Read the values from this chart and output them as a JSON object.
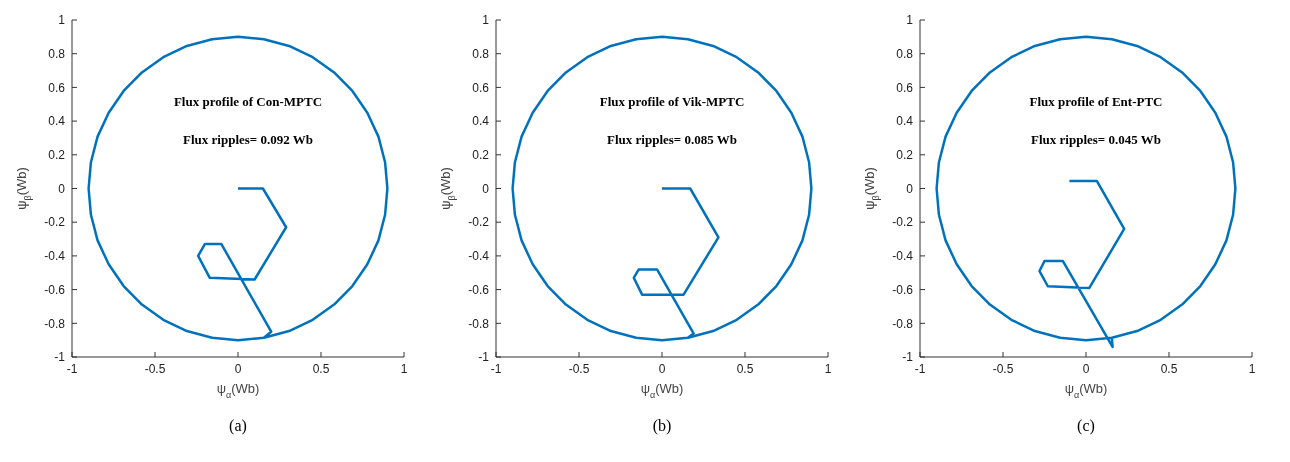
{
  "chart_data": [
    {
      "type": "line",
      "title": "Flux profile of Con-MPTC",
      "subtitle": "Flux ripples= 0.092 Wb",
      "annotations": [
        "(a)"
      ],
      "xlabel": "ψ$_{α}$(Wb)",
      "ylabel": "ψ$_{β}$(Wb)",
      "xlim": [
        -1,
        1
      ],
      "xticks": [
        -1,
        -0.5,
        0,
        0.5,
        1
      ],
      "ylim": [
        -1,
        1
      ],
      "yticks": [
        -1,
        -0.8,
        -0.6,
        -0.4,
        -0.2,
        0,
        0.2,
        0.4,
        0.6,
        0.8,
        1
      ],
      "grid": false,
      "marker": "none",
      "line_style": "solid",
      "series": [
        {
          "color": "#0072bd",
          "x": [
            0,
            0.15,
            0.29,
            0.1,
            -0.17,
            -0.24,
            -0.2,
            -0.1,
            0.2,
            0.156,
            0.308,
            0.45,
            0.579,
            0.689,
            0.779,
            0.846,
            0.886,
            0.9,
            0.886,
            0.846,
            0.779,
            0.689,
            0.579,
            0.45,
            0.308,
            0.156,
            0,
            -0.156,
            -0.308,
            -0.45,
            -0.579,
            -0.689,
            -0.779,
            -0.846,
            -0.886,
            -0.9,
            -0.886,
            -0.846,
            -0.779,
            -0.689,
            -0.579,
            -0.45,
            -0.308,
            -0.156,
            0,
            0.156
          ],
          "values": [
            0,
            0,
            -0.23,
            -0.54,
            -0.53,
            -0.4,
            -0.33,
            -0.33,
            -0.85,
            -0.886,
            -0.846,
            -0.779,
            -0.689,
            -0.579,
            -0.45,
            -0.308,
            -0.156,
            0,
            0.156,
            0.308,
            0.45,
            0.579,
            0.689,
            0.779,
            0.846,
            0.886,
            0.9,
            0.886,
            0.846,
            0.779,
            0.689,
            0.579,
            0.45,
            0.308,
            0.156,
            0,
            -0.156,
            -0.308,
            -0.45,
            -0.579,
            -0.689,
            -0.779,
            -0.846,
            -0.886,
            -0.9,
            -0.886
          ]
        }
      ]
    },
    {
      "type": "line",
      "title": "Flux profile of Vik-MPTC",
      "subtitle": "Flux ripples= 0.085 Wb",
      "annotations": [
        "(b)"
      ],
      "xlabel": "ψ$_{α}$(Wb)",
      "ylabel": "ψ$_{β}$(Wb)",
      "xlim": [
        -1,
        1
      ],
      "xticks": [
        -1,
        -0.5,
        0,
        0.5,
        1
      ],
      "ylim": [
        -1,
        1
      ],
      "yticks": [
        -1,
        -0.8,
        -0.6,
        -0.4,
        -0.2,
        0,
        0.2,
        0.4,
        0.6,
        0.8,
        1
      ],
      "grid": false,
      "marker": "none",
      "line_style": "solid",
      "series": [
        {
          "color": "#0072bd",
          "x": [
            0,
            0.17,
            0.34,
            0.13,
            -0.12,
            -0.17,
            -0.14,
            -0.03,
            0.19,
            0.156,
            0.308,
            0.45,
            0.579,
            0.689,
            0.779,
            0.846,
            0.886,
            0.9,
            0.886,
            0.846,
            0.779,
            0.689,
            0.579,
            0.45,
            0.308,
            0.156,
            0,
            -0.156,
            -0.308,
            -0.45,
            -0.579,
            -0.689,
            -0.779,
            -0.846,
            -0.886,
            -0.9,
            -0.886,
            -0.846,
            -0.779,
            -0.689,
            -0.579,
            -0.45,
            -0.308,
            -0.156,
            0,
            0.156
          ],
          "values": [
            0,
            0,
            -0.29,
            -0.63,
            -0.63,
            -0.53,
            -0.48,
            -0.48,
            -0.86,
            -0.886,
            -0.846,
            -0.779,
            -0.689,
            -0.579,
            -0.45,
            -0.308,
            -0.156,
            0,
            0.156,
            0.308,
            0.45,
            0.579,
            0.689,
            0.779,
            0.846,
            0.886,
            0.9,
            0.886,
            0.846,
            0.779,
            0.689,
            0.579,
            0.45,
            0.308,
            0.156,
            0,
            -0.156,
            -0.308,
            -0.45,
            -0.579,
            -0.689,
            -0.779,
            -0.846,
            -0.886,
            -0.9,
            -0.886
          ]
        }
      ]
    },
    {
      "type": "line",
      "title": "Flux profile of Ent-PTC",
      "subtitle": "Flux ripples= 0.045 Wb",
      "annotations": [
        "(c)"
      ],
      "xlabel": "ψ$_{α}$(Wb)",
      "ylabel": "ψ$_{β}$(Wb)",
      "xlim": [
        -1,
        1
      ],
      "xticks": [
        -1,
        -0.5,
        0,
        0.5,
        1
      ],
      "ylim": [
        -1,
        1
      ],
      "yticks": [
        -1,
        -0.8,
        -0.6,
        -0.4,
        -0.2,
        0,
        0.2,
        0.4,
        0.6,
        0.8,
        1
      ],
      "grid": false,
      "marker": "none",
      "line_style": "solid",
      "series": [
        {
          "color": "#0072bd",
          "x": [
            -0.1,
            0.065,
            0.23,
            0.02,
            -0.23,
            -0.28,
            -0.25,
            -0.14,
            0.16,
            0.156,
            0.308,
            0.45,
            0.579,
            0.689,
            0.779,
            0.846,
            0.886,
            0.9,
            0.886,
            0.846,
            0.779,
            0.689,
            0.579,
            0.45,
            0.308,
            0.156,
            0,
            -0.156,
            -0.308,
            -0.45,
            -0.579,
            -0.689,
            -0.779,
            -0.846,
            -0.886,
            -0.9,
            -0.886,
            -0.846,
            -0.779,
            -0.689,
            -0.579,
            -0.45,
            -0.308,
            -0.156,
            0,
            0.156
          ],
          "values": [
            0.045,
            0.045,
            -0.24,
            -0.59,
            -0.58,
            -0.49,
            -0.43,
            -0.43,
            -0.94,
            -0.886,
            -0.846,
            -0.779,
            -0.689,
            -0.579,
            -0.45,
            -0.308,
            -0.156,
            0,
            0.156,
            0.308,
            0.45,
            0.579,
            0.689,
            0.779,
            0.846,
            0.886,
            0.9,
            0.886,
            0.846,
            0.779,
            0.689,
            0.579,
            0.45,
            0.308,
            0.156,
            0,
            -0.156,
            -0.308,
            -0.45,
            -0.579,
            -0.689,
            -0.779,
            -0.846,
            -0.886,
            -0.9,
            -0.886
          ]
        }
      ]
    }
  ]
}
